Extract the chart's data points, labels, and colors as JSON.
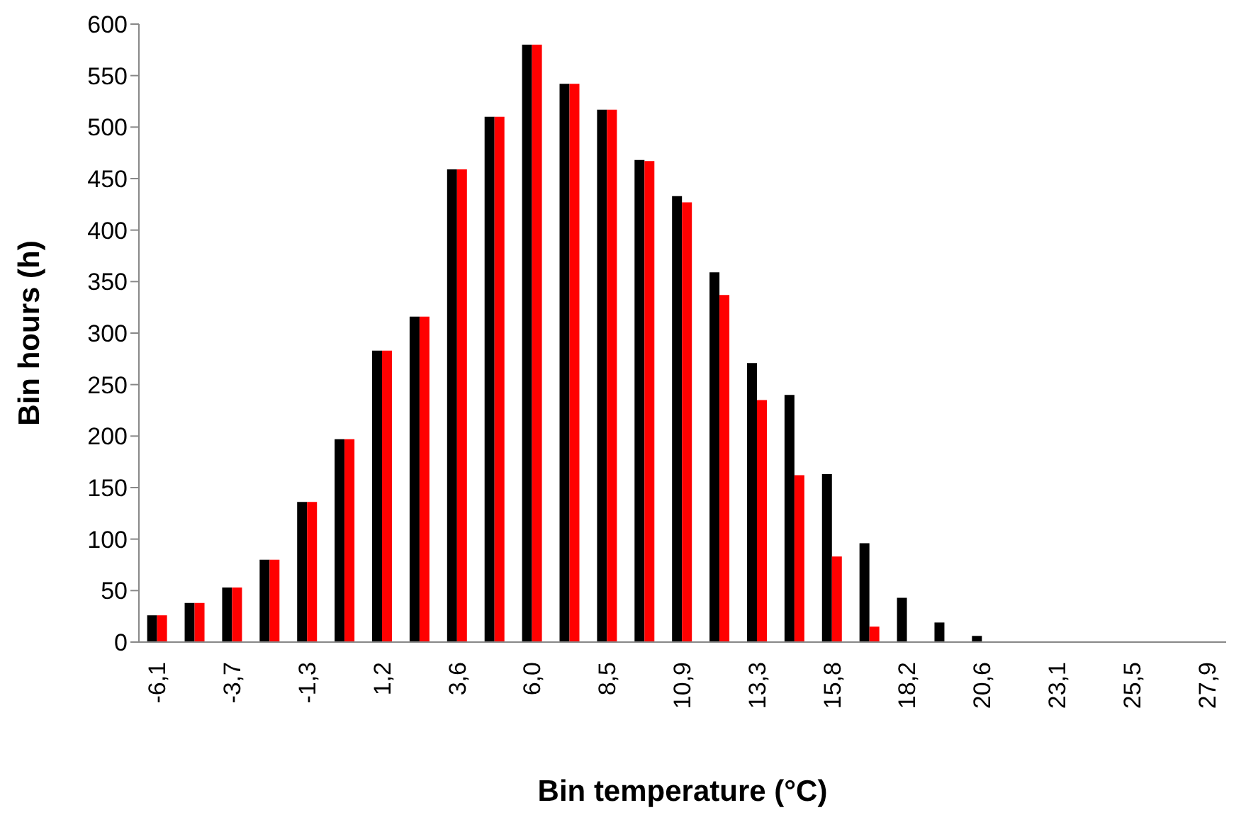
{
  "chart_data": {
    "type": "bar",
    "xlabel": "Bin temperature (°C)",
    "ylabel": "Bin hours (h)",
    "categories": [
      "-6,1",
      null,
      "-3,7",
      null,
      "-1,3",
      null,
      "1,2",
      null,
      "3,6",
      null,
      "6,0",
      null,
      "8,5",
      null,
      "10,9",
      null,
      "13,3",
      null,
      "15,8",
      null,
      "18,2",
      null,
      "20,6",
      null,
      "23,1",
      null,
      "25,5",
      null,
      "27,9"
    ],
    "series": [
      {
        "color": "#000000",
        "values": [
          26,
          38,
          53,
          80,
          136,
          197,
          283,
          316,
          459,
          510,
          580,
          542,
          517,
          468,
          433,
          359,
          271,
          240,
          163,
          96,
          43,
          19,
          6,
          0,
          0,
          0,
          0,
          0,
          0
        ]
      },
      {
        "color": "#ff0000",
        "values": [
          26,
          38,
          53,
          80,
          136,
          197,
          283,
          316,
          459,
          510,
          580,
          542,
          517,
          467,
          427,
          337,
          235,
          162,
          83,
          15,
          0,
          0,
          0,
          0,
          0,
          0,
          0,
          0,
          0
        ]
      }
    ],
    "ylim": [
      0,
      600
    ],
    "yticks": [
      0,
      50,
      100,
      150,
      200,
      250,
      300,
      350,
      400,
      450,
      500,
      550,
      600
    ],
    "grid": false,
    "legend": false
  }
}
